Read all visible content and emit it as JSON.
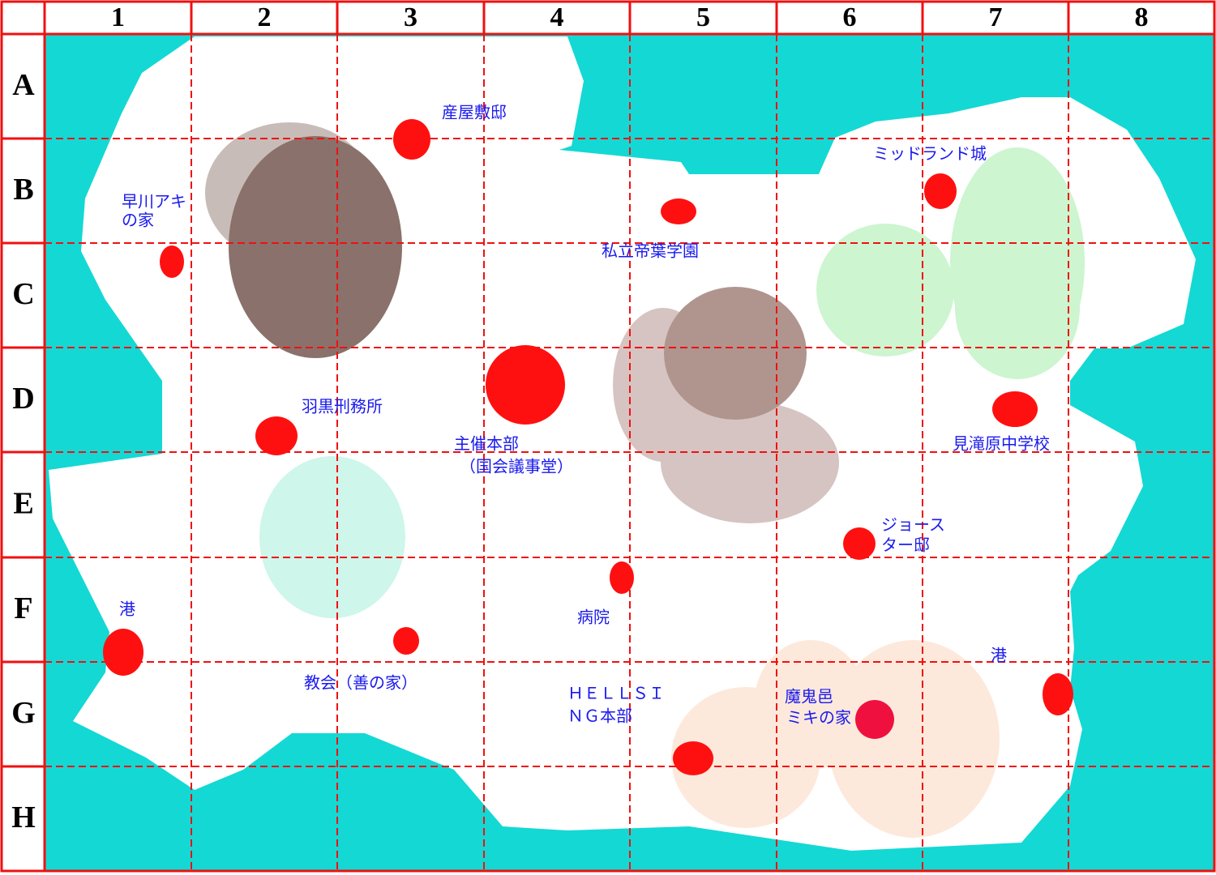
{
  "columns": [
    "1",
    "2",
    "3",
    "4",
    "5",
    "6",
    "7",
    "8"
  ],
  "rows": [
    "A",
    "B",
    "C",
    "D",
    "E",
    "F",
    "G",
    "H"
  ],
  "places": [
    {
      "lines": [
        "産屋敷邸"
      ]
    },
    {
      "lines": [
        "早川アキ",
        "の家"
      ]
    },
    {
      "lines": [
        "私立帝葉学園"
      ]
    },
    {
      "lines": [
        "ミッドランド城"
      ]
    },
    {
      "lines": [
        "羽黒刑務所"
      ]
    },
    {
      "lines": [
        "主催本部",
        "（国会議事堂）"
      ]
    },
    {
      "lines": [
        "見滝原中学校"
      ]
    },
    {
      "lines": [
        "ジョース",
        "ター邸"
      ]
    },
    {
      "lines": [
        "港"
      ]
    },
    {
      "lines": [
        "病院"
      ]
    },
    {
      "lines": [
        "港"
      ]
    },
    {
      "lines": [
        "教会（善の家）"
      ]
    },
    {
      "lines": [
        "ＨＥＬＬＳＩ",
        "ＮＧ本部"
      ]
    },
    {
      "lines": [
        "魔鬼邑",
        "ミキの家"
      ]
    }
  ]
}
